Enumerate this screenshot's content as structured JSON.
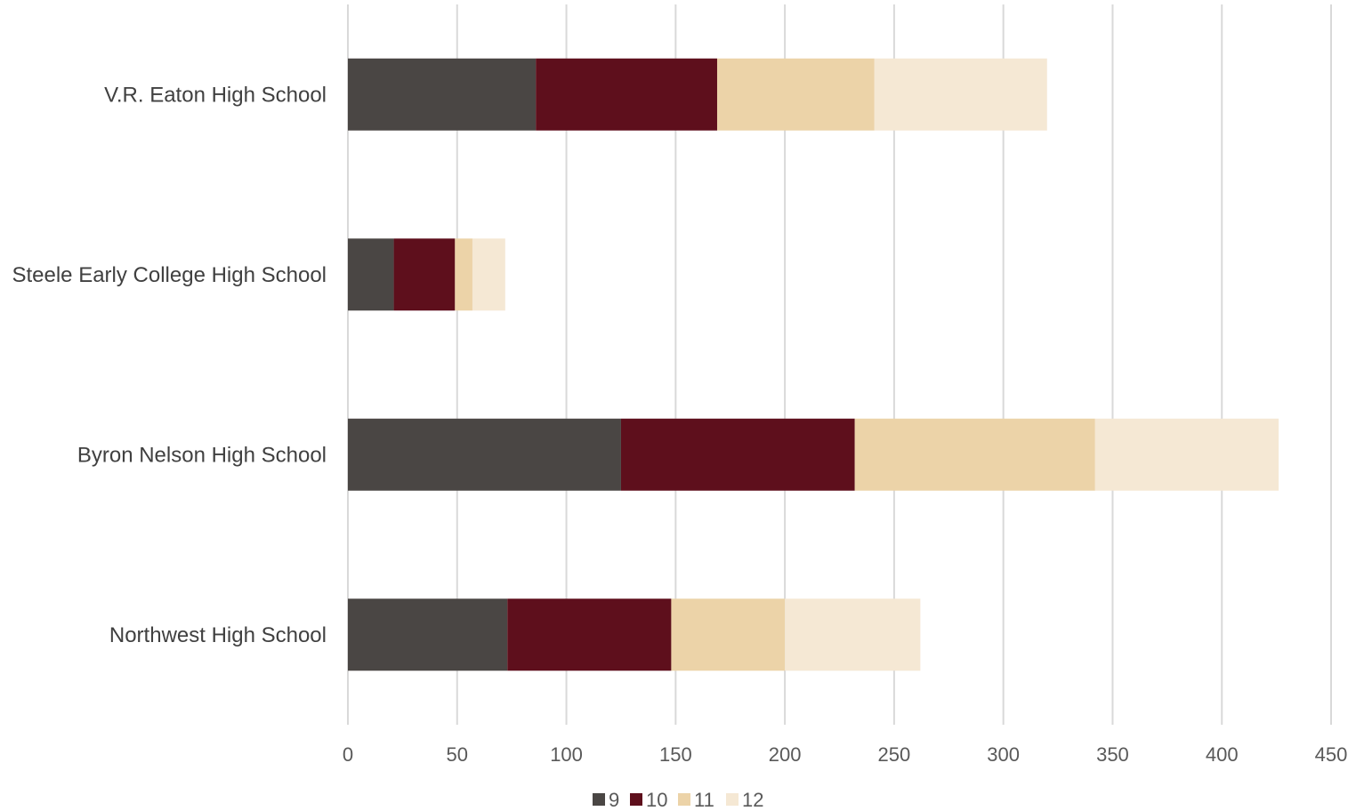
{
  "chart_data": {
    "type": "bar",
    "orientation": "horizontal",
    "stacked": true,
    "categories": [
      "V.R. Eaton High School",
      "Steele Early College High School",
      "Byron Nelson High School",
      "Northwest High School"
    ],
    "series": [
      {
        "name": "9",
        "color": "#4a4644",
        "values": [
          86,
          21,
          125,
          73
        ]
      },
      {
        "name": "10",
        "color": "#5e0f1c",
        "values": [
          83,
          28,
          107,
          75
        ]
      },
      {
        "name": "11",
        "color": "#ecd3a8",
        "values": [
          72,
          8,
          110,
          52
        ]
      },
      {
        "name": "12",
        "color": "#f5e8d4",
        "values": [
          79,
          15,
          84,
          62
        ]
      }
    ],
    "xlim": [
      0,
      450
    ],
    "xticks": [
      0,
      50,
      100,
      150,
      200,
      250,
      300,
      350,
      400,
      450
    ],
    "title": "",
    "xlabel": "",
    "ylabel": "",
    "grid": "vertical",
    "legend": "bottom"
  }
}
